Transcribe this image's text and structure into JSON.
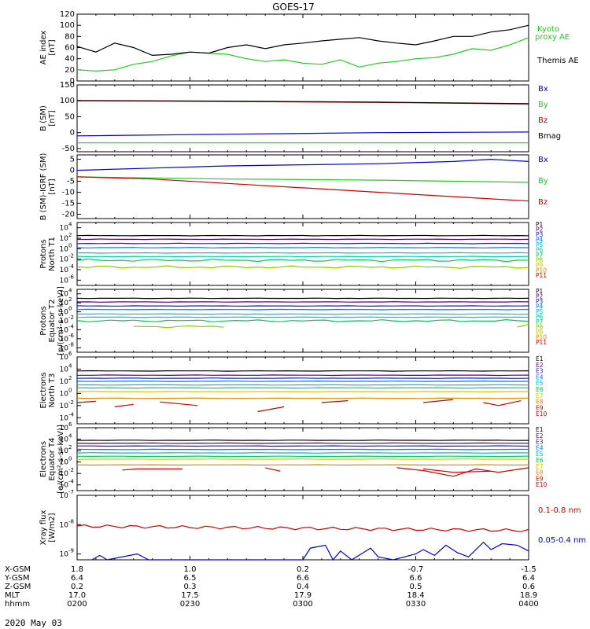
{
  "title": "GOES-17",
  "date_label": "2020 May 03",
  "colors": {
    "black": "#000000",
    "green": "#22cc22",
    "blue": "#0000cc",
    "red": "#cc0000",
    "p_colors": [
      "#000000",
      "#5a007a",
      "#1a1acc",
      "#0077ff",
      "#00bbdd",
      "#00ccaa",
      "#00cc55",
      "#88cc00",
      "#cccc00",
      "#dd8800",
      "#cc0000"
    ],
    "e_colors": [
      "#000000",
      "#5a007a",
      "#1a1acc",
      "#0077ff",
      "#00bbdd",
      "#00cc55",
      "#cccc00",
      "#dd8800",
      "#cc0000",
      "#cc0000"
    ]
  },
  "x_axis": {
    "tick_labels": [
      "0200",
      "0230",
      "0300",
      "0330",
      "0400"
    ],
    "rows": [
      {
        "label": "X-GSM",
        "values": [
          "1.8",
          "1.0",
          "0.2",
          "-0.7",
          "-1.5"
        ]
      },
      {
        "label": "Y-GSM",
        "values": [
          "6.4",
          "6.5",
          "6.6",
          "6.6",
          "6.4"
        ]
      },
      {
        "label": "Z-GSM",
        "values": [
          "0.2",
          "0.3",
          "0.4",
          "0.5",
          "0.6"
        ]
      },
      {
        "label": "MLT",
        "values": [
          "17.0",
          "17.5",
          "17.9",
          "18.4",
          "18.9"
        ]
      },
      {
        "label": "hhmm",
        "values": [
          "0200",
          "0230",
          "0300",
          "0330",
          "0400"
        ]
      }
    ]
  },
  "chart_data": [
    {
      "type": "line",
      "ylabel": "AE index [nT]",
      "ylim": [
        0,
        120
      ],
      "yticks": [
        "0",
        "20",
        "40",
        "60",
        "80",
        "100",
        "120"
      ],
      "x_range": [
        "0200",
        "0400"
      ],
      "legend": [
        "Kyoto proxy AE",
        "Themis AE"
      ],
      "series": [
        {
          "name": "Kyoto proxy AE",
          "color": "green",
          "x": [
            0,
            5,
            10,
            15,
            20,
            25,
            30,
            35,
            40,
            45,
            50,
            55,
            60,
            65,
            70,
            75,
            80,
            85,
            90,
            95,
            100,
            105,
            110,
            115,
            120
          ],
          "values": [
            20,
            18,
            20,
            30,
            35,
            45,
            52,
            50,
            48,
            40,
            35,
            38,
            32,
            30,
            38,
            25,
            32,
            35,
            40,
            42,
            48,
            58,
            55,
            65,
            78
          ]
        },
        {
          "name": "Themis AE",
          "color": "black",
          "x": [
            0,
            5,
            10,
            15,
            20,
            25,
            30,
            35,
            40,
            45,
            50,
            55,
            60,
            65,
            70,
            75,
            80,
            85,
            90,
            95,
            100,
            105,
            110,
            115,
            120
          ],
          "values": [
            62,
            52,
            68,
            60,
            46,
            48,
            52,
            50,
            60,
            65,
            58,
            65,
            68,
            72,
            75,
            78,
            72,
            68,
            65,
            72,
            80,
            80,
            88,
            92,
            100
          ]
        }
      ]
    },
    {
      "type": "line",
      "ylabel": "B (SM) [nT]",
      "ylim": [
        -60,
        150
      ],
      "yticks": [
        "-50",
        "0",
        "50",
        "100",
        "150"
      ],
      "legend": [
        "Bx",
        "By",
        "Bz",
        "Bmag"
      ],
      "series": [
        {
          "name": "Bx",
          "color": "blue",
          "x": [
            0,
            40,
            80,
            120
          ],
          "values": [
            -10,
            -5,
            0,
            2
          ]
        },
        {
          "name": "By",
          "color": "green",
          "x": [
            0,
            40,
            80,
            120
          ],
          "values": [
            -32,
            -32,
            -32,
            -32
          ]
        },
        {
          "name": "Bz",
          "color": "red",
          "x": [
            0,
            40,
            80,
            120
          ],
          "values": [
            100,
            98,
            95,
            90
          ]
        },
        {
          "name": "Bmag",
          "color": "black",
          "x": [
            0,
            40,
            80,
            120
          ],
          "values": [
            101,
            99,
            96,
            91
          ]
        }
      ]
    },
    {
      "type": "line",
      "ylabel": "B (SM)-IGRF (SM) [nT]",
      "ylim": [
        -22,
        7
      ],
      "yticks": [
        "-20",
        "-15",
        "-10",
        "-5",
        "0",
        "5"
      ],
      "legend": [
        "Bx",
        "By",
        "Bz"
      ],
      "series": [
        {
          "name": "Bx",
          "color": "blue",
          "x": [
            0,
            20,
            40,
            60,
            80,
            100,
            110,
            120
          ],
          "values": [
            0,
            1,
            2,
            2.5,
            3,
            4,
            5,
            4
          ]
        },
        {
          "name": "By",
          "color": "green",
          "x": [
            0,
            20,
            40,
            60,
            80,
            100,
            120
          ],
          "values": [
            -3,
            -3.5,
            -4,
            -4.2,
            -4.5,
            -5,
            -5.5
          ]
        },
        {
          "name": "Bz",
          "color": "red",
          "x": [
            0,
            20,
            40,
            60,
            80,
            100,
            120
          ],
          "values": [
            -3,
            -4,
            -6,
            -8,
            -10,
            -12,
            -14
          ]
        }
      ]
    },
    {
      "type": "line",
      "yscale": "log",
      "ylabel": "Protons North T1",
      "yticks": [
        "10^4",
        "10^2",
        "10^0",
        "10^-2",
        "10^-4",
        "10^-6"
      ],
      "legend": [
        "P1",
        "P2",
        "P3",
        "P4",
        "P5",
        "P6",
        "P7",
        "P8",
        "P9",
        "P10",
        "P11"
      ],
      "series_log10": [
        {
          "name": "P1",
          "values": [
            2.5,
            2.5
          ]
        },
        {
          "name": "P2",
          "values": [
            1.8,
            1.8
          ]
        },
        {
          "name": "P3",
          "values": [
            1.0,
            1.0
          ]
        },
        {
          "name": "P4",
          "values": [
            0.2,
            0.2
          ]
        },
        {
          "name": "P5",
          "values": [
            -0.8,
            -0.8
          ]
        },
        {
          "name": "P6",
          "values": [
            -1.5,
            -1.5
          ]
        },
        {
          "name": "P7",
          "values": [
            -2.2,
            -2.0
          ]
        },
        {
          "name": "P8",
          "values": [
            -3.5,
            -3.2
          ]
        }
      ]
    },
    {
      "type": "line",
      "yscale": "log",
      "ylabel": "Protons Equator T2 [p/(cm²-s-sr-keV)]",
      "yticks": [
        "10^4",
        "10^2",
        "10^0",
        "10^-2",
        "10^-4",
        "10^-6",
        "10^-8"
      ],
      "legend": [
        "P1",
        "P2",
        "P3",
        "P4",
        "P5",
        "P6",
        "P7",
        "P8",
        "P9",
        "P10",
        "P11"
      ],
      "series_log10": [
        {
          "name": "P1",
          "values": [
            3.0,
            3.0
          ]
        },
        {
          "name": "P2",
          "values": [
            2.2,
            2.2
          ]
        },
        {
          "name": "P3",
          "values": [
            1.3,
            1.3
          ]
        },
        {
          "name": "P4",
          "values": [
            0.5,
            0.5
          ]
        },
        {
          "name": "P5",
          "values": [
            -0.5,
            -0.5
          ]
        },
        {
          "name": "P6",
          "values": [
            -1.2,
            -1.2
          ]
        },
        {
          "name": "P7",
          "values": [
            -2.0,
            -2.0
          ]
        },
        {
          "name": "P8",
          "values": [
            -3.3,
            -3.0
          ]
        }
      ]
    },
    {
      "type": "line",
      "yscale": "log",
      "ylabel": "Electrons North T3",
      "yticks": [
        "10^6",
        "10^4",
        "10^2",
        "10^0",
        "10^-2",
        "10^-4"
      ],
      "legend": [
        "E1",
        "E2",
        "E3",
        "E4",
        "E5",
        "E6",
        "E7",
        "E8",
        "E9",
        "E10"
      ],
      "series_log10": [
        {
          "name": "E1",
          "values": [
            3.7,
            3.6
          ]
        },
        {
          "name": "E2",
          "values": [
            3.0,
            3.0
          ]
        },
        {
          "name": "E3",
          "values": [
            2.5,
            2.5
          ]
        },
        {
          "name": "E4",
          "values": [
            2.0,
            2.0
          ]
        },
        {
          "name": "E5",
          "values": [
            1.4,
            1.4
          ]
        },
        {
          "name": "E6",
          "values": [
            0.9,
            0.9
          ]
        },
        {
          "name": "E7",
          "values": [
            0.3,
            0.3
          ]
        },
        {
          "name": "E8",
          "values": [
            -0.8,
            -0.8
          ]
        }
      ]
    },
    {
      "type": "line",
      "yscale": "log",
      "ylabel": "Electrons Equator T4 [e/(cm²-s-sr-keV)]",
      "yticks": [
        "10^6",
        "10^4",
        "10^2",
        "10^0",
        "10^-2",
        "10^-4"
      ],
      "legend": [
        "E1",
        "E2",
        "E3",
        "E4",
        "E5",
        "E6",
        "E7",
        "E8",
        "E9",
        "E10"
      ],
      "series_log10": [
        {
          "name": "E1",
          "values": [
            3.8,
            3.8
          ]
        },
        {
          "name": "E2",
          "values": [
            3.3,
            3.3
          ]
        },
        {
          "name": "E3",
          "values": [
            2.8,
            2.8
          ]
        },
        {
          "name": "E4",
          "values": [
            2.2,
            2.2
          ]
        },
        {
          "name": "E5",
          "values": [
            1.6,
            1.6
          ]
        },
        {
          "name": "E6",
          "values": [
            1.0,
            1.0
          ]
        },
        {
          "name": "E7",
          "values": [
            0.5,
            0.5
          ]
        },
        {
          "name": "E8",
          "values": [
            -0.5,
            -0.5
          ]
        }
      ]
    },
    {
      "type": "line",
      "yscale": "log",
      "ylabel": "Xray flux [W/m2]",
      "yticks": [
        "10^-7",
        "10^-8",
        "10^-9"
      ],
      "legend": [
        "0.1-0.8 nm",
        "0.05-0.4 nm"
      ],
      "series_log10": [
        {
          "name": "0.1-0.8 nm",
          "values": [
            -8.05,
            -8.1,
            -8.15,
            -8.2,
            -8.15,
            -8.2,
            -8.15,
            -8.2,
            -8.1
          ]
        }
      ]
    }
  ]
}
